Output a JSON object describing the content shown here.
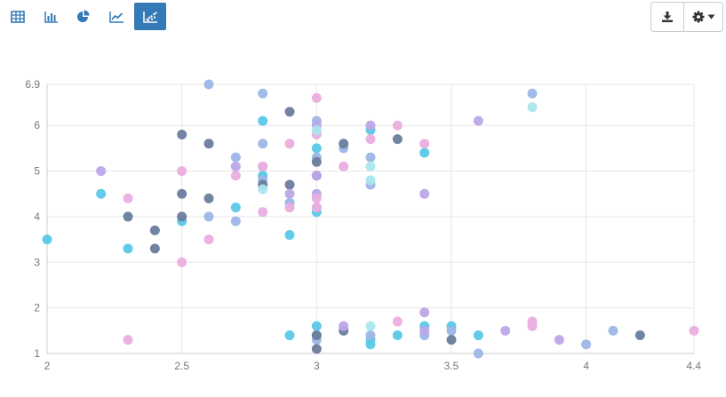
{
  "toolbar": {
    "views": [
      {
        "name": "table-view-button",
        "icon": "table-icon",
        "active": false
      },
      {
        "name": "bar-chart-view-button",
        "icon": "bar-chart-icon",
        "active": false
      },
      {
        "name": "pie-chart-view-button",
        "icon": "pie-chart-icon",
        "active": false
      },
      {
        "name": "line-chart-view-button",
        "icon": "line-chart-icon",
        "active": false
      },
      {
        "name": "scatter-chart-view-button",
        "icon": "scatter-chart-icon",
        "active": true
      }
    ],
    "actions": [
      {
        "name": "download-button",
        "icon": "download-icon"
      },
      {
        "name": "settings-button",
        "icon": "gear-icon",
        "dropdown": true
      }
    ],
    "icon_color": "#337ab7",
    "active_bg": "#337ab7"
  },
  "chart_data": {
    "type": "scatter",
    "title": "",
    "xlabel": "",
    "ylabel": "",
    "xlim": [
      2,
      4.4
    ],
    "ylim": [
      1,
      6.9
    ],
    "x_ticks": [
      "2",
      "2.5",
      "3",
      "3.5",
      "4",
      "4.4"
    ],
    "y_ticks": [
      "1",
      "2",
      "3",
      "4",
      "5",
      "6",
      "6.9"
    ],
    "grid": true,
    "legend": "none",
    "series": [
      {
        "color": "#5ac8e8",
        "points": [
          [
            2,
            3.5
          ],
          [
            2.2,
            4.5
          ],
          [
            2.3,
            3.3
          ],
          [
            2.5,
            3.9
          ],
          [
            2.7,
            4.2
          ],
          [
            2.8,
            6.1
          ],
          [
            2.8,
            4.9
          ],
          [
            2.9,
            3.6
          ],
          [
            2.9,
            4.3
          ],
          [
            2.9,
            1.4
          ],
          [
            3,
            5.5
          ],
          [
            3,
            4.1
          ],
          [
            3,
            1.6
          ],
          [
            3,
            1.4
          ],
          [
            3.2,
            5.9
          ],
          [
            3.2,
            1.3
          ],
          [
            3.2,
            1.2
          ],
          [
            3.3,
            1.4
          ],
          [
            3.4,
            5.4
          ],
          [
            3.4,
            1.6
          ],
          [
            3.5,
            1.6
          ],
          [
            3.6,
            1.4
          ]
        ]
      },
      {
        "color": "#9db6e6",
        "points": [
          [
            2.6,
            6.9
          ],
          [
            2.6,
            4
          ],
          [
            2.7,
            5.3
          ],
          [
            2.7,
            3.9
          ],
          [
            2.8,
            6.7
          ],
          [
            2.8,
            5.6
          ],
          [
            2.8,
            4.8
          ],
          [
            2.9,
            4.3
          ],
          [
            3,
            6.1
          ],
          [
            3,
            5.3
          ],
          [
            3,
            4.2
          ],
          [
            3,
            1.3
          ],
          [
            3.1,
            5.5
          ],
          [
            3.2,
            5.3
          ],
          [
            3.2,
            4.7
          ],
          [
            3.2,
            1.4
          ],
          [
            3.4,
            1.4
          ],
          [
            3.5,
            1.5
          ],
          [
            3.6,
            1
          ],
          [
            3.8,
            6.7
          ],
          [
            4,
            1.2
          ],
          [
            4.1,
            1.5
          ]
        ]
      },
      {
        "color": "#6a7d9c",
        "points": [
          [
            2.3,
            4
          ],
          [
            2.4,
            3.7
          ],
          [
            2.4,
            3.3
          ],
          [
            2.5,
            5.8
          ],
          [
            2.5,
            4.5
          ],
          [
            2.5,
            4
          ],
          [
            2.6,
            5.6
          ],
          [
            2.6,
            4.4
          ],
          [
            2.8,
            4.7
          ],
          [
            2.9,
            6.3
          ],
          [
            2.9,
            4.7
          ],
          [
            3,
            5.2
          ],
          [
            3,
            4.9
          ],
          [
            3,
            1.4
          ],
          [
            3,
            1.1
          ],
          [
            3.1,
            5.6
          ],
          [
            3.1,
            1.5
          ],
          [
            3.3,
            5.7
          ],
          [
            3.5,
            1.3
          ],
          [
            4.2,
            1.4
          ]
        ]
      },
      {
        "color": "#bda7e8",
        "points": [
          [
            2.2,
            5
          ],
          [
            2.7,
            5.1
          ],
          [
            2.8,
            5.1
          ],
          [
            2.9,
            4.5
          ],
          [
            3,
            6
          ],
          [
            3,
            4.9
          ],
          [
            3,
            4.5
          ],
          [
            3.1,
            1.6
          ],
          [
            3.2,
            6
          ],
          [
            3.4,
            4.5
          ],
          [
            3.4,
            1.9
          ],
          [
            3.4,
            1.5
          ],
          [
            3.6,
            6.1
          ],
          [
            3.7,
            1.5
          ],
          [
            3.9,
            1.3
          ]
        ]
      },
      {
        "color": "#eaaedf",
        "points": [
          [
            2.3,
            4.4
          ],
          [
            2.3,
            1.3
          ],
          [
            2.5,
            5
          ],
          [
            2.5,
            3
          ],
          [
            2.6,
            3.5
          ],
          [
            2.7,
            4.9
          ],
          [
            2.8,
            5.1
          ],
          [
            2.8,
            4.1
          ],
          [
            2.9,
            5.6
          ],
          [
            2.9,
            4.2
          ],
          [
            3,
            6.6
          ],
          [
            3,
            5.8
          ],
          [
            3,
            4.4
          ],
          [
            3,
            4.2
          ],
          [
            3.1,
            5.1
          ],
          [
            3.2,
            5.7
          ],
          [
            3.3,
            6
          ],
          [
            3.3,
            1.7
          ],
          [
            3.4,
            5.6
          ],
          [
            3.8,
            1.7
          ],
          [
            3.8,
            1.6
          ],
          [
            4.4,
            1.5
          ]
        ]
      },
      {
        "color": "#a9e6ee",
        "points": [
          [
            2.8,
            4.6
          ],
          [
            3,
            5.9
          ],
          [
            3.2,
            5.1
          ],
          [
            3.2,
            4.8
          ],
          [
            3.2,
            1.6
          ],
          [
            3.8,
            6.4
          ]
        ]
      }
    ]
  }
}
